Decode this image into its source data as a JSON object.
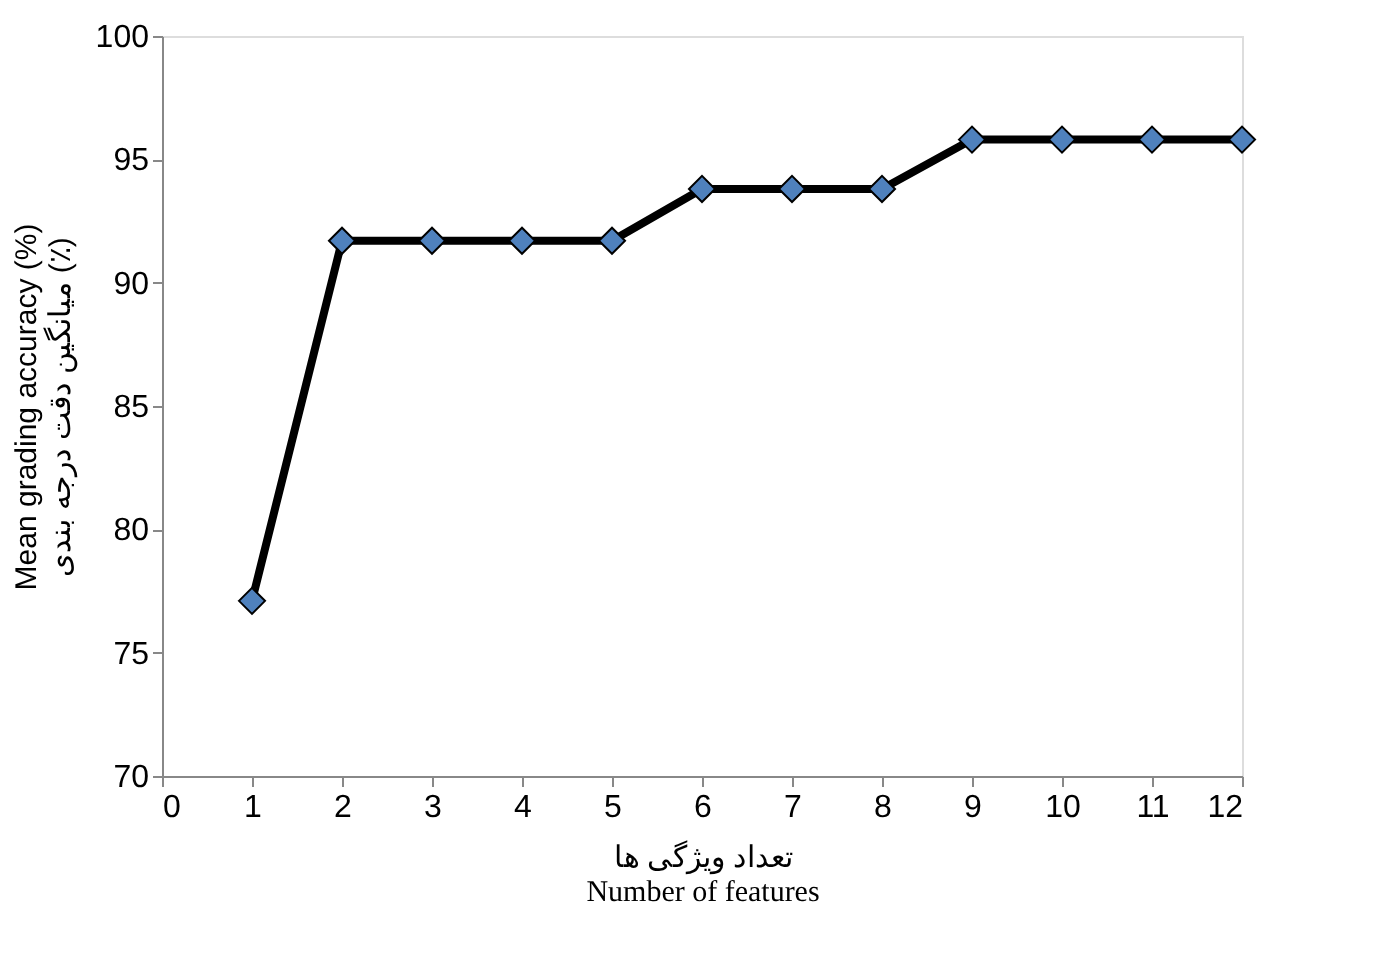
{
  "chart_data": {
    "type": "line",
    "xlabel": "تعداد ویژگی ها\nNumber of features",
    "ylabel": "Mean grading accuracy (%)\nمیانگین دقت درجه بندی (٪)",
    "x": [
      1,
      2,
      3,
      4,
      5,
      6,
      7,
      8,
      9,
      10,
      11,
      12
    ],
    "series": [
      {
        "color": "#4f81bd",
        "values": [
          77.1,
          91.7,
          91.7,
          91.7,
          91.7,
          93.8,
          93.8,
          93.8,
          95.8,
          95.8,
          95.8,
          95.8
        ]
      }
    ],
    "xlim": [
      0,
      12
    ],
    "xticks": [
      0,
      1,
      2,
      3,
      4,
      5,
      6,
      7,
      8,
      9,
      10,
      11,
      12
    ],
    "ylim": [
      70,
      100
    ],
    "yticks": [
      70,
      75,
      80,
      85,
      90,
      95,
      100
    ],
    "grid": false,
    "legend": false,
    "marker": "diamond",
    "line_style": "solid"
  }
}
